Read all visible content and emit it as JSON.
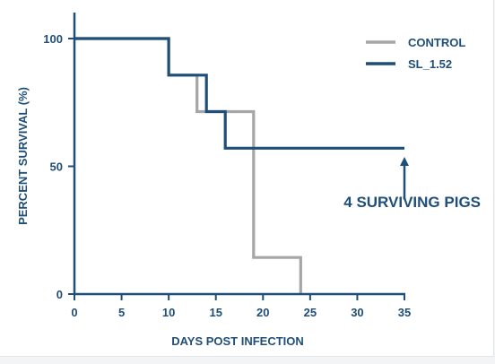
{
  "chart_data": {
    "type": "line",
    "step": true,
    "xlabel": "DAYS POST INFECTION",
    "ylabel": "PERCENT SURVIVAL (%)",
    "x_ticks": [
      0,
      5,
      10,
      15,
      20,
      25,
      30,
      35
    ],
    "y_ticks": [
      0,
      50,
      100
    ],
    "xlim": [
      0,
      35
    ],
    "ylim": [
      0,
      112
    ],
    "grid": false,
    "legend_position": "top-right",
    "series": [
      {
        "name": "CONTROL",
        "color": "#a6a6a6",
        "x": [
          0,
          10,
          10,
          13,
          13,
          19,
          19,
          24,
          24
        ],
        "y": [
          100,
          100,
          85.7,
          85.7,
          71.4,
          71.4,
          14.3,
          14.3,
          0
        ]
      },
      {
        "name": "SL_1.52",
        "color": "#1f4e79",
        "x": [
          0,
          10,
          10,
          14,
          14,
          16,
          16,
          35
        ],
        "y": [
          100,
          100,
          85.7,
          85.7,
          71.4,
          71.4,
          57.1,
          57.1
        ]
      }
    ],
    "annotations": [
      {
        "text": "4 SURVIVING PIGS",
        "color": "#1f4e79",
        "arrow_x": 35,
        "arrow_from_y": 37,
        "arrow_to_y": 53
      }
    ]
  },
  "colors": {
    "axis": "#1f4e79",
    "background": "#ffffff"
  }
}
